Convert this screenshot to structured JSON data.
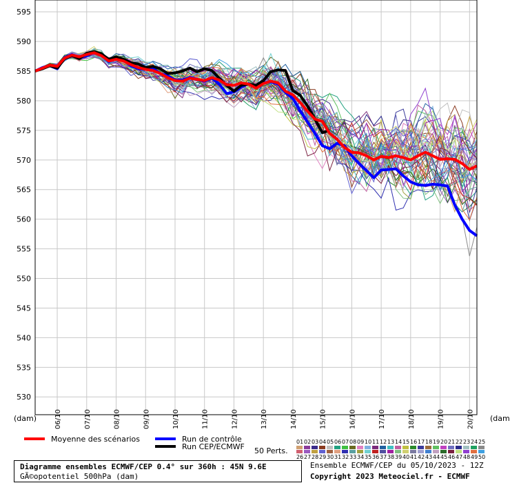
{
  "chart_data": {
    "type": "line",
    "ylabel_left": "(dam)",
    "ylabel_right": "(dam)",
    "ylim": [
      527,
      597
    ],
    "yticks": [
      530,
      535,
      540,
      545,
      550,
      555,
      560,
      565,
      570,
      575,
      580,
      585,
      590,
      595
    ],
    "xlim": [
      0,
      360
    ],
    "xticks": [
      {
        "label": "06/10",
        "h": 18
      },
      {
        "label": "07/10",
        "h": 42
      },
      {
        "label": "08/10",
        "h": 66
      },
      {
        "label": "09/10",
        "h": 90
      },
      {
        "label": "10/10",
        "h": 114
      },
      {
        "label": "11/10",
        "h": 138
      },
      {
        "label": "12/10",
        "h": 162
      },
      {
        "label": "13/10",
        "h": 186
      },
      {
        "label": "14/10",
        "h": 210
      },
      {
        "label": "15/10",
        "h": 234
      },
      {
        "label": "16/10",
        "h": 258
      },
      {
        "label": "17/10",
        "h": 282
      },
      {
        "label": "18/10",
        "h": 306
      },
      {
        "label": "19/10",
        "h": 330
      },
      {
        "label": "20/10",
        "h": 354
      }
    ],
    "grid": true,
    "step_h": 6,
    "series": [
      {
        "name": "Moyenne des scénarios",
        "color": "#ff0000",
        "width": 4,
        "values": [
          585,
          585.5,
          586,
          585.8,
          587.2,
          587.7,
          587.4,
          587.8,
          588.1,
          587.6,
          586.7,
          587,
          586.7,
          586.1,
          585.6,
          585.3,
          585.1,
          584.6,
          583.9,
          583.4,
          583.3,
          583.8,
          583.6,
          583.4,
          583.9,
          583.5,
          582.7,
          582.6,
          583,
          582.8,
          582.1,
          582.9,
          583.3,
          583,
          581.6,
          581,
          579.7,
          578.2,
          576.9,
          576.5,
          574.5,
          573.5,
          572.1,
          571.3,
          571.2,
          570.7,
          570,
          570.6,
          570.4,
          570.7,
          570.4,
          570,
          570.7,
          571.3,
          570.7,
          570.1,
          570.2,
          570.1,
          569.4,
          568.4,
          569
        ]
      },
      {
        "name": "Run de contrôle",
        "color": "#0000ff",
        "width": 4,
        "values": [
          585,
          585.6,
          585.9,
          585.4,
          587.3,
          587.8,
          587.2,
          587.6,
          588.2,
          587.7,
          586.6,
          587.2,
          586.9,
          585.9,
          585.4,
          585.3,
          585.4,
          584.6,
          584.2,
          583.5,
          583.5,
          583.9,
          583.6,
          583.3,
          583.8,
          582.8,
          581.2,
          581.5,
          582.3,
          582.9,
          582.2,
          583,
          583.2,
          582.8,
          581.4,
          580.4,
          578.3,
          576.4,
          574.5,
          572.4,
          571.9,
          572.8,
          572.4,
          570.7,
          569.4,
          568.2,
          567,
          568.3,
          568.4,
          568.5,
          567.3,
          566.3,
          565.8,
          565.7,
          565.9,
          565.8,
          565.6,
          562.4,
          560,
          558.1,
          557.2
        ]
      },
      {
        "name": "Run CEP/ECMWF",
        "color": "#000000",
        "width": 4,
        "values": [
          585,
          585.4,
          585.9,
          585.5,
          587.1,
          587.6,
          587.1,
          588,
          588.3,
          587.9,
          587,
          587.4,
          587,
          586.4,
          586.2,
          585.6,
          585.8,
          585.4,
          584.6,
          584.7,
          585,
          585.5,
          584.9,
          585.4,
          585.1,
          583.8,
          582.6,
          581.6,
          582.6,
          582.8,
          582.6,
          583.4,
          584.9,
          585.2,
          585.1,
          581.7,
          580.9,
          579.1,
          576.9,
          574.6,
          575
        ]
      }
    ],
    "legend_title": "50 Perts.",
    "legend_codes_row1": [
      "01",
      "02",
      "03",
      "04",
      "05",
      "06",
      "07",
      "08",
      "09",
      "10",
      "11",
      "12",
      "13",
      "14",
      "15",
      "16",
      "17",
      "18",
      "19",
      "20",
      "21",
      "22",
      "23",
      "24",
      "25"
    ],
    "legend_codes_row2": [
      "26",
      "27",
      "28",
      "29",
      "30",
      "31",
      "32",
      "33",
      "34",
      "35",
      "36",
      "37",
      "38",
      "39",
      "40",
      "41",
      "42",
      "43",
      "44",
      "45",
      "46",
      "47",
      "48",
      "49",
      "50"
    ]
  },
  "colors": {
    "perts": [
      "#d0a070",
      "#8a3a9a",
      "#3a2a8a",
      "#8a3a20",
      "#c0c0c0",
      "#20a080",
      "#40c040",
      "#6a6a20",
      "#e080c0",
      "#80b0e0",
      "#7a2a7a",
      "#2060a0",
      "#40c0c0",
      "#c060a0",
      "#c0c040",
      "#2a8a2a",
      "#3a3a9a",
      "#9a6a3a",
      "#60c060",
      "#c040c0",
      "#7070c0",
      "#2a2a8a",
      "#a0c0c0",
      "#20a060",
      "#8a8a8a",
      "#d06070",
      "#9a5ac0",
      "#c0a040",
      "#6060d0",
      "#a06040",
      "#e0a080",
      "#3030b0",
      "#5aa0a0",
      "#a0a040",
      "#70d0d0",
      "#c02020",
      "#5050a0",
      "#a020a0",
      "#80c080",
      "#d0d070",
      "#7a7aa0",
      "#a0a0d0",
      "#4080d0",
      "#c0a0c0",
      "#2a6a2a",
      "#7a2040",
      "#c0e080",
      "#9040d0",
      "#e07040",
      "#40a0e0"
    ]
  },
  "legend": {
    "mean_label": "Moyenne des scénarios",
    "control_label": "Run de contrôle",
    "oper_label": "Run CEP/ECMWF"
  },
  "footer": {
    "title_line1": "Diagramme ensembles ECMWF/CEP 0.4° sur 360h : 45N 9.6E",
    "title_line2": "GÃ©opotentiel 500hPa (dam)",
    "run_info": "Ensemble ECMWF/CEP du 05/10/2023 - 12Z",
    "copyright": "Copyright 2023 Meteociel.fr - ECMWF"
  }
}
